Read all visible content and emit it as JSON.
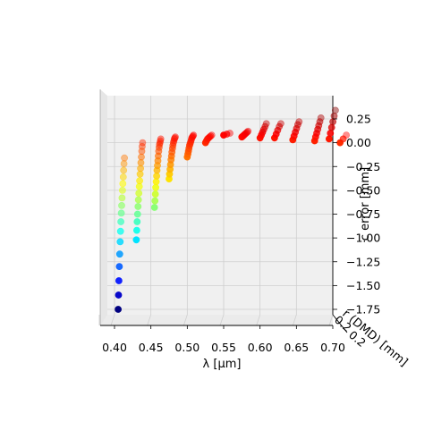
{
  "chart_data": {
    "type": "scatter",
    "projection": "3d",
    "title": "",
    "xlabel": "λ [μm]",
    "ylabel": "r (DMD) [mm]",
    "zlabel": "c error [mm]",
    "x_ticks": [
      "0.40",
      "0.45",
      "0.50",
      "0.55",
      "0.60",
      "0.65",
      "0.70"
    ],
    "z_ticks": [
      "0.25",
      "0.00",
      "−0.25",
      "−0.50",
      "−0.75",
      "−1.00",
      "−1.25",
      "−1.50",
      "−1.75"
    ],
    "y_ticks_partial": [
      "0.2",
      "0.2"
    ],
    "xlim": [
      0.38,
      0.71
    ],
    "zlim": [
      -1.85,
      0.45
    ],
    "colormap": "jet",
    "grid": true,
    "series": [
      {
        "lambda": 0.405,
        "c_error": [
          -1.75,
          -1.6,
          -1.45,
          -1.3,
          -1.17,
          -1.04,
          -0.93,
          -0.83,
          -0.74,
          -0.66,
          -0.58,
          -0.5,
          -0.43,
          -0.36,
          -0.29,
          -0.22,
          -0.16
        ]
      },
      {
        "lambda": 0.43,
        "c_error": [
          -1.02,
          -0.92,
          -0.83,
          -0.75,
          -0.67,
          -0.6,
          -0.53,
          -0.46,
          -0.4,
          -0.33,
          -0.27,
          -0.21,
          -0.15,
          -0.09,
          -0.04,
          0.0
        ]
      },
      {
        "lambda": 0.455,
        "c_error": [
          -0.68,
          -0.61,
          -0.54,
          -0.47,
          -0.41,
          -0.35,
          -0.29,
          -0.24,
          -0.19,
          -0.14,
          -0.09,
          -0.05,
          -0.02,
          0.0,
          0.02,
          0.04
        ]
      },
      {
        "lambda": 0.475,
        "c_error": [
          -0.38,
          -0.33,
          -0.28,
          -0.23,
          -0.18,
          -0.14,
          -0.1,
          -0.06,
          -0.03,
          0.0,
          0.02,
          0.04,
          0.05,
          0.06
        ]
      },
      {
        "lambda": 0.5,
        "c_error": [
          -0.15,
          -0.12,
          -0.09,
          -0.06,
          -0.03,
          -0.01,
          0.01,
          0.03,
          0.05,
          0.06,
          0.07,
          0.08
        ]
      },
      {
        "lambda": 0.525,
        "c_error": [
          0.0,
          0.02,
          0.04,
          0.05,
          0.06,
          0.07,
          0.08
        ]
      },
      {
        "lambda": 0.55,
        "c_error": [
          0.08,
          0.09,
          0.1
        ]
      },
      {
        "lambda": 0.575,
        "c_error": [
          0.06,
          0.07,
          0.08,
          0.09,
          0.1,
          0.11,
          0.12
        ]
      },
      {
        "lambda": 0.6,
        "c_error": [
          0.05,
          0.08,
          0.11,
          0.14,
          0.17,
          0.2
        ]
      },
      {
        "lambda": 0.62,
        "c_error": [
          0.05,
          0.09,
          0.13,
          0.17,
          0.2
        ]
      },
      {
        "lambda": 0.645,
        "c_error": [
          0.03,
          0.07,
          0.11,
          0.15,
          0.19,
          0.22
        ]
      },
      {
        "lambda": 0.675,
        "c_error": [
          0.02,
          0.06,
          0.1,
          0.14,
          0.18,
          0.22,
          0.26
        ]
      },
      {
        "lambda": 0.695,
        "c_error": [
          0.04,
          0.1,
          0.16,
          0.22,
          0.28,
          0.34
        ]
      },
      {
        "lambda": 0.71,
        "c_error": [
          0.0,
          0.04,
          0.08
        ]
      }
    ]
  }
}
